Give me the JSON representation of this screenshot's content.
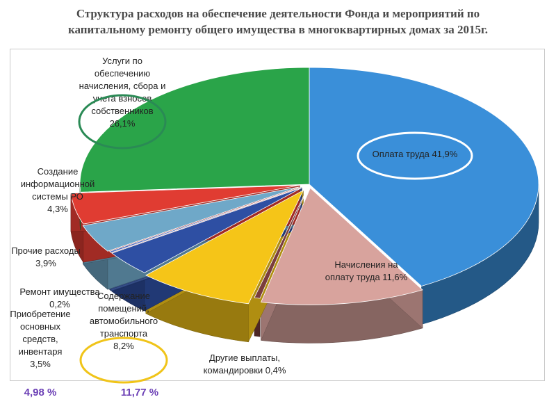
{
  "title": {
    "line1": "Структура расходов на обеспечение деятельности Фонда и мероприятий по",
    "line2": "капитальному ремонту общего имущества в многоквартирных домах за 2015г."
  },
  "chart_data": {
    "type": "pie",
    "title": "Структура расходов на обеспечение деятельности Фонда и мероприятий по капитальному ремонту общего имущества в многоквартирных домах за 2015г.",
    "style": "3d-exploded",
    "slices": [
      {
        "label_lines": [
          "Оплата труда 41,9%"
        ],
        "value": 41.9,
        "color": "#3a8fd9"
      },
      {
        "label_lines": [
          "Начисления на",
          "оплату труда 11,6%"
        ],
        "value": 11.6,
        "color": "#d8a39d"
      },
      {
        "label_lines": [
          "Другие выплаты,",
          "командировки 0,4%"
        ],
        "value": 0.4,
        "color": "#7a3d3d"
      },
      {
        "label_lines": [
          "Содержание",
          "помещений,",
          "автомобильного",
          "транспорта",
          "8,2%"
        ],
        "value": 8.2,
        "color": "#f5c518"
      },
      {
        "label_lines": [
          "Приобретение",
          "основных",
          "средств,",
          "инвентаря",
          "3,5%"
        ],
        "value": 3.5,
        "color": "#2e4fa3"
      },
      {
        "label_lines": [
          "Ремонт имущества",
          "0,2%"
        ],
        "value": 0.2,
        "color": "#4a6cc0"
      },
      {
        "label_lines": [
          "Прочие расходы",
          "3,9%"
        ],
        "value": 3.9,
        "color": "#6fa8c8"
      },
      {
        "label_lines": [
          "Создание",
          "информационной",
          "системы РО",
          "4,3%"
        ],
        "value": 4.3,
        "color": "#e03c32"
      },
      {
        "label_lines": [
          "Услуги по",
          "обеспечению",
          "начисления, сбора и",
          "учета взносов",
          "собственников",
          "26,1%"
        ],
        "value": 26.1,
        "color": "#2aa449"
      }
    ],
    "highlights": [
      {
        "slice": "Оплата труда",
        "color": "#ffffff"
      },
      {
        "slice": "Услуги по обеспечению начисления, сбора и учета взносов собственников",
        "color": "#2a8a55"
      },
      {
        "slice": "Содержание помещений, автомобильного транспорта",
        "color": "#f0c419"
      }
    ]
  },
  "notes": [
    {
      "text": "4,98 %",
      "color": "#6b3fb5"
    },
    {
      "text": "11,77 %",
      "color": "#6b3fb5"
    }
  ]
}
